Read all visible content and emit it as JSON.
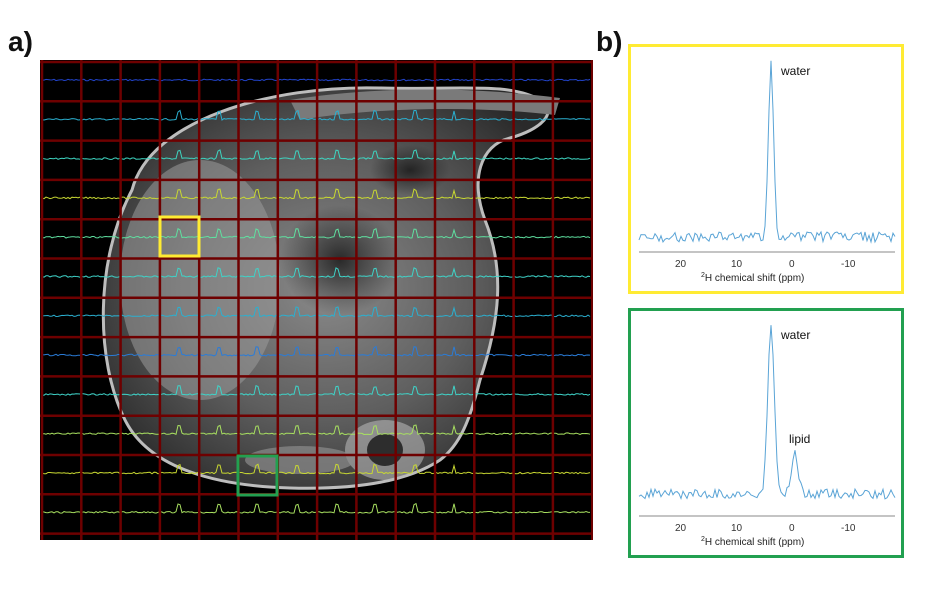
{
  "panel_a": {
    "label": "a)"
  },
  "panel_b": {
    "label": "b)"
  },
  "colors": {
    "grid": "#6e0000",
    "highlight_yellow": "#ffeb33",
    "highlight_green": "#22a050",
    "spectrum_line": "#5aa4d6"
  },
  "spectra": [
    {
      "frame_color": "yellow",
      "peaks": [
        {
          "label": "water",
          "ppm": 4.7
        }
      ],
      "x_ticks": [
        "20",
        "10",
        "0",
        "-10"
      ],
      "x_axis_superscript": "2",
      "x_axis_label": "H chemical shift (ppm)"
    },
    {
      "frame_color": "green",
      "peaks": [
        {
          "label": "water",
          "ppm": 4.7
        },
        {
          "label": "lipid",
          "ppm": 1.3
        }
      ],
      "x_ticks": [
        "20",
        "10",
        "0",
        "-10"
      ],
      "x_axis_superscript": "2",
      "x_axis_label": "H chemical shift (ppm)"
    }
  ]
}
